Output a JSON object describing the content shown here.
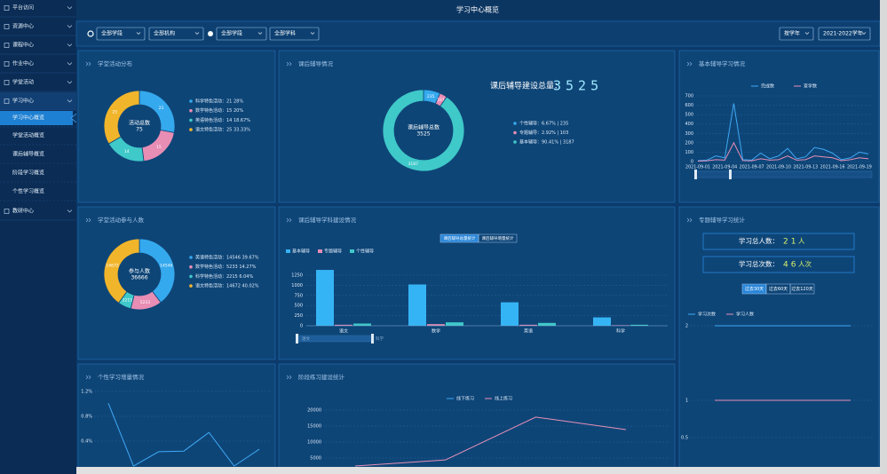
{
  "sidebar": {
    "items": [
      "平台访问",
      "资源中心",
      "课程中心",
      "作业中心",
      "学堂活动",
      "学习中心",
      "教研中心"
    ],
    "submenu": [
      "学习中心概览",
      "学堂活动概览",
      "课后辅导概览",
      "阶段学习概览",
      "个性学习概览"
    ]
  },
  "header": {
    "title": "学习中心概览"
  },
  "filters": {
    "left": [
      "全部学段",
      "全部机构",
      "全部学段",
      "全部学科"
    ],
    "right": [
      "按学年",
      "2021-2022学年"
    ]
  },
  "panels": {
    "activity": {
      "type": "pie",
      "title": "学堂活动分布",
      "center_label": "活动总数",
      "center_value": 75,
      "values": [
        21,
        15,
        14,
        25
      ],
      "colors": [
        "#35a9ee",
        "#e88db4",
        "#3fc9c9",
        "#f1b52b"
      ],
      "legend": [
        "科学特色活动：21 28%",
        "数学特色活动：15 20%",
        "英语特色活动：14 18.67%",
        "语文特色活动：25 33.33%"
      ]
    },
    "tutoring": {
      "type": "pie",
      "title": "课后辅导情况",
      "center_label": "课后辅导总数",
      "center_value": 3525,
      "headline": "课后辅导建设总量：",
      "total": 3525,
      "values": [
        235,
        103,
        3187
      ],
      "colors": [
        "#35a9ee",
        "#e88db4",
        "#3fc9c9"
      ],
      "legend": [
        "个性辅导：6.67% | 235",
        "专题辅导：2.92% | 103",
        "基本辅导：90.41% | 3187"
      ]
    },
    "basic": {
      "type": "line",
      "title": "基本辅导学习情况",
      "categories": [
        "2021-09-01",
        null,
        null,
        "2021-09-04",
        null,
        null,
        "2021-09-07",
        null,
        null,
        "2021-09-10",
        null,
        null,
        "2021-09-13",
        null,
        null,
        "2021-09-16",
        null,
        null,
        "2021-09-19",
        null
      ],
      "series": [
        {
          "name": "完成数",
          "color": "#3fa9f5",
          "values": [
            10,
            15,
            60,
            40,
            620,
            20,
            15,
            90,
            30,
            60,
            140,
            30,
            50,
            150,
            130,
            90,
            20,
            40,
            100,
            80
          ]
        },
        {
          "name": "查学数",
          "color": "#e890b8",
          "values": [
            5,
            8,
            20,
            15,
            200,
            10,
            8,
            30,
            15,
            20,
            60,
            15,
            20,
            60,
            50,
            40,
            10,
            20,
            40,
            30
          ]
        }
      ],
      "ylim": [
        0,
        700
      ],
      "yticks": [
        0,
        100,
        200,
        300,
        400,
        500,
        600,
        700
      ]
    },
    "participants": {
      "type": "pie",
      "title": "学堂活动参与人数",
      "center_label": "参与人数",
      "center_value": 36666,
      "values": [
        14546,
        5233,
        2215,
        14672
      ],
      "colors": [
        "#35a9ee",
        "#e88db4",
        "#3fc9c9",
        "#f1b52b"
      ],
      "legend": [
        "英语特色活动：14546 39.67%",
        "数学特色活动：5233 14.27%",
        "科学特色活动：2215 6.04%",
        "语文特色活动：14672 40.02%"
      ]
    },
    "subjects": {
      "type": "bar",
      "title": "课后辅导学科建设情况",
      "toggles": [
        "课后辅导总量统计",
        "课后辅导增量统计"
      ],
      "categories": [
        "语文",
        "数学",
        "英语",
        "科学"
      ],
      "series": [
        {
          "name": "基本辅导",
          "color": "#35b4f5",
          "values": [
            1380,
            1020,
            580,
            207
          ]
        },
        {
          "name": "专题辅导",
          "color": "#e88db4",
          "values": [
            25,
            40,
            25,
            13
          ]
        },
        {
          "name": "个性辅导",
          "color": "#3fc9c9",
          "values": [
            55,
            85,
            70,
            25
          ]
        }
      ],
      "ylim": [
        0,
        1500
      ],
      "yticks": [
        0,
        250,
        500,
        750,
        1000,
        1250
      ]
    },
    "topic": {
      "type": "line",
      "title": "专题辅导学习统计",
      "stats": [
        {
          "label": "学习总人数：",
          "value": 21,
          "unit": "人"
        },
        {
          "label": "学习总次数：",
          "value": 46,
          "unit": "人次"
        }
      ],
      "buttons": [
        "过去30天",
        "过去60天",
        "过去120天"
      ],
      "series": [
        {
          "name": "学习次数",
          "color": "#3fa9f5",
          "values": [
            2,
            2,
            2,
            2,
            2,
            2,
            2,
            2
          ]
        },
        {
          "name": "学习人数",
          "color": "#e890b8",
          "values": [
            1,
            1,
            1,
            1,
            1,
            1,
            1,
            1
          ]
        }
      ],
      "ylim": [
        0,
        2
      ],
      "yticks": [
        0.5,
        1,
        2
      ]
    },
    "personal": {
      "type": "line",
      "title": "个性学习增量情况",
      "series": [
        {
          "color": "#3fa9f5",
          "values": [
            1.01,
            0,
            0.23,
            0.24,
            0.54,
            0,
            0.27
          ]
        }
      ],
      "ylim": [
        0,
        1.4
      ],
      "yticks": [
        {
          "value": 0.4,
          "label": "0.4%"
        },
        {
          "value": 0.8,
          "label": "0.8%"
        },
        {
          "value": 1.2,
          "label": "1.2%"
        }
      ]
    },
    "practice": {
      "type": "line",
      "title": "阶段练习建设统计",
      "series": [
        {
          "name": "线下练习",
          "color": "#3fa9f5",
          "values": [
            800,
            600,
            900,
            700
          ]
        },
        {
          "name": "线上练习",
          "color": "#e890b8",
          "values": [
            2500,
            4400,
            17800,
            13900
          ]
        }
      ],
      "ylim": [
        0,
        22000
      ],
      "yticks": [
        5000,
        10000,
        15000,
        20000
      ]
    }
  }
}
